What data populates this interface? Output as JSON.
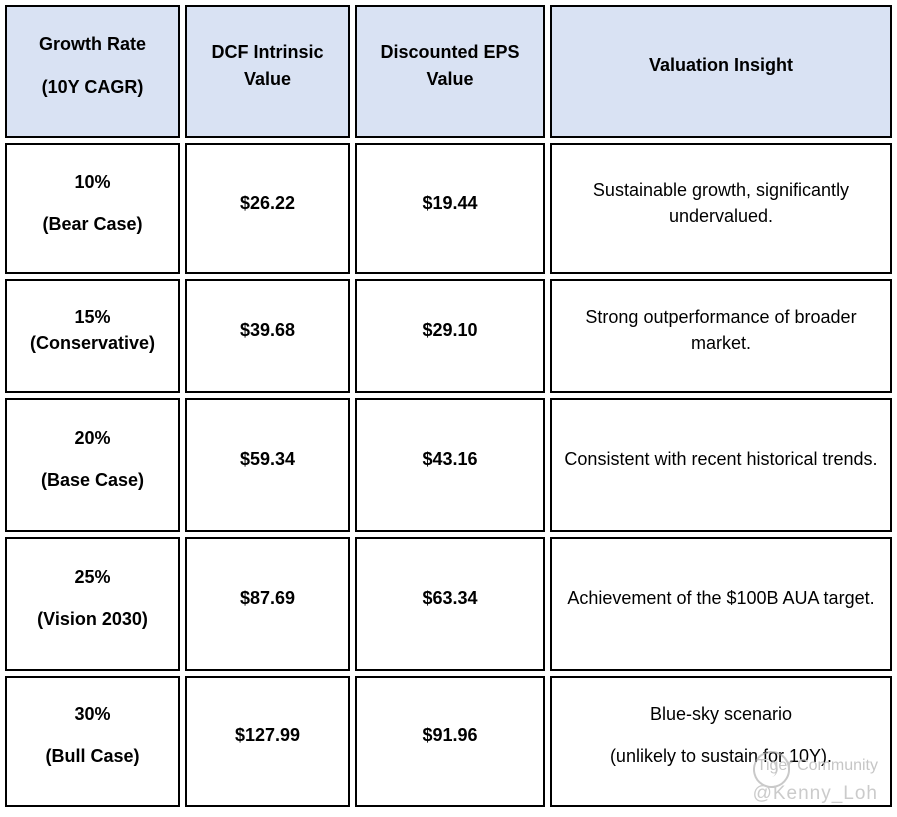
{
  "table": {
    "headers": [
      {
        "paras": [
          "Growth Rate",
          "(10Y CAGR)"
        ]
      },
      {
        "paras": [
          "DCF Intrinsic Value"
        ]
      },
      {
        "paras": [
          "Discounted EPS Value"
        ]
      },
      {
        "paras": [
          "Valuation Insight"
        ]
      }
    ],
    "rows": [
      {
        "cells": [
          {
            "paras": [
              "10%",
              "(Bear Case)"
            ]
          },
          {
            "paras": [
              "$26.22"
            ]
          },
          {
            "paras": [
              "$19.44"
            ]
          },
          {
            "paras": [
              "Sustainable growth, significantly undervalued."
            ]
          }
        ]
      },
      {
        "cells": [
          {
            "paras": [
              "15%\n(Conservative)"
            ]
          },
          {
            "paras": [
              "$39.68"
            ]
          },
          {
            "paras": [
              "$29.10"
            ]
          },
          {
            "paras": [
              "Strong outperformance of broader market."
            ]
          }
        ]
      },
      {
        "cells": [
          {
            "paras": [
              "20%",
              "(Base Case)"
            ]
          },
          {
            "paras": [
              "$59.34"
            ]
          },
          {
            "paras": [
              "$43.16"
            ]
          },
          {
            "paras": [
              "Consistent with recent historical trends."
            ]
          }
        ]
      },
      {
        "cells": [
          {
            "paras": [
              "25%",
              "(Vision 2030)"
            ]
          },
          {
            "paras": [
              "$87.69"
            ]
          },
          {
            "paras": [
              "$63.34"
            ]
          },
          {
            "paras": [
              "Achievement of the $100B AUA target."
            ]
          }
        ]
      },
      {
        "cells": [
          {
            "paras": [
              "30%",
              "(Bull Case)"
            ]
          },
          {
            "paras": [
              "$127.99"
            ]
          },
          {
            "paras": [
              "$91.96"
            ]
          },
          {
            "paras": [
              "Blue-sky scenario",
              "(unlikely to sustain for 10Y)."
            ]
          }
        ]
      }
    ]
  },
  "watermark": {
    "community": "Tiger Community",
    "handle": "@Kenny_Loh"
  },
  "colors": {
    "header_bg": "#d9e2f3",
    "border": "#000000",
    "watermark_gray": "#c6c6c6"
  }
}
